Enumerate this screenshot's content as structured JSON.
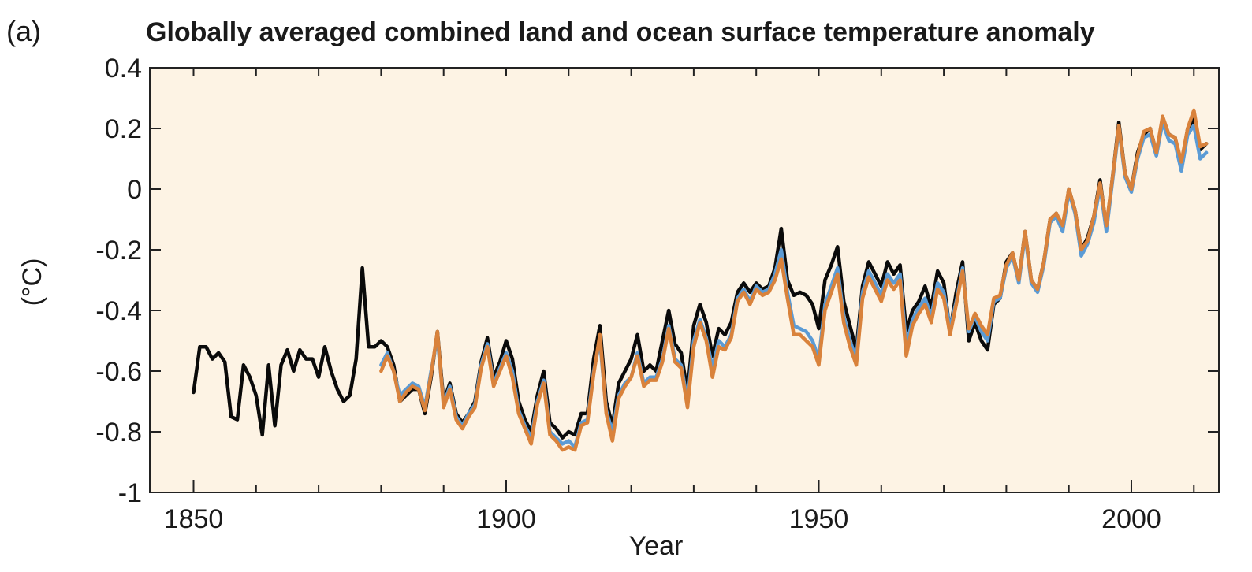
{
  "chart_data": {
    "type": "line",
    "panel_label": "(a)",
    "title": "Globally averaged combined land and ocean surface temperature anomaly",
    "xlabel": "Year",
    "ylabel": "(°C)",
    "xlim": [
      1843,
      2014
    ],
    "ylim": [
      -1,
      0.4
    ],
    "xticks": [
      1850,
      1900,
      1950,
      2000
    ],
    "yticks": [
      0.4,
      0.2,
      0,
      -0.2,
      -0.4,
      -0.6,
      -0.8,
      -1
    ],
    "ytick_labels": [
      "0.4",
      "0.2",
      "0",
      "-0.2",
      "-0.4",
      "-0.6",
      "-0.8",
      "-1"
    ],
    "grid": false,
    "legend": "none",
    "colors": {
      "plot_background": "#fdf3e4",
      "series_black": "#0a0a0a",
      "series_blue": "#5b9bd5",
      "series_orange": "#d9823b"
    },
    "series": [
      {
        "color": "#0a0a0a",
        "x": [
          1850,
          1851,
          1852,
          1853,
          1854,
          1855,
          1856,
          1857,
          1858,
          1859,
          1860,
          1861,
          1862,
          1863,
          1864,
          1865,
          1866,
          1867,
          1868,
          1869,
          1870,
          1871,
          1872,
          1873,
          1874,
          1875,
          1876,
          1877,
          1878,
          1879,
          1880,
          1881,
          1882,
          1883,
          1884,
          1885,
          1886,
          1887,
          1888,
          1889,
          1890,
          1891,
          1892,
          1893,
          1894,
          1895,
          1896,
          1897,
          1898,
          1899,
          1900,
          1901,
          1902,
          1903,
          1904,
          1905,
          1906,
          1907,
          1908,
          1909,
          1910,
          1911,
          1912,
          1913,
          1914,
          1915,
          1916,
          1917,
          1918,
          1919,
          1920,
          1921,
          1922,
          1923,
          1924,
          1925,
          1926,
          1927,
          1928,
          1929,
          1930,
          1931,
          1932,
          1933,
          1934,
          1935,
          1936,
          1937,
          1938,
          1939,
          1940,
          1941,
          1942,
          1943,
          1944,
          1945,
          1946,
          1947,
          1948,
          1949,
          1950,
          1951,
          1952,
          1953,
          1954,
          1955,
          1956,
          1957,
          1958,
          1959,
          1960,
          1961,
          1962,
          1963,
          1964,
          1965,
          1966,
          1967,
          1968,
          1969,
          1970,
          1971,
          1972,
          1973,
          1974,
          1975,
          1976,
          1977,
          1978,
          1979,
          1980,
          1981,
          1982,
          1983,
          1984,
          1985,
          1986,
          1987,
          1988,
          1989,
          1990,
          1991,
          1992,
          1993,
          1994,
          1995,
          1996,
          1997,
          1998,
          1999,
          2000,
          2001,
          2002,
          2003,
          2004,
          2005,
          2006,
          2007,
          2008,
          2009,
          2010,
          2011,
          2012
        ],
        "y": [
          -0.67,
          -0.52,
          -0.52,
          -0.56,
          -0.54,
          -0.57,
          -0.75,
          -0.76,
          -0.58,
          -0.62,
          -0.68,
          -0.81,
          -0.58,
          -0.78,
          -0.58,
          -0.53,
          -0.6,
          -0.53,
          -0.56,
          -0.56,
          -0.62,
          -0.52,
          -0.6,
          -0.66,
          -0.7,
          -0.68,
          -0.56,
          -0.26,
          -0.52,
          -0.52,
          -0.5,
          -0.52,
          -0.58,
          -0.7,
          -0.68,
          -0.66,
          -0.66,
          -0.74,
          -0.62,
          -0.47,
          -0.7,
          -0.64,
          -0.74,
          -0.77,
          -0.74,
          -0.7,
          -0.57,
          -0.49,
          -0.62,
          -0.57,
          -0.5,
          -0.56,
          -0.7,
          -0.76,
          -0.8,
          -0.68,
          -0.6,
          -0.77,
          -0.79,
          -0.82,
          -0.8,
          -0.81,
          -0.74,
          -0.74,
          -0.56,
          -0.45,
          -0.7,
          -0.78,
          -0.64,
          -0.6,
          -0.56,
          -0.48,
          -0.6,
          -0.58,
          -0.6,
          -0.5,
          -0.4,
          -0.51,
          -0.54,
          -0.67,
          -0.45,
          -0.38,
          -0.44,
          -0.55,
          -0.46,
          -0.48,
          -0.44,
          -0.34,
          -0.31,
          -0.34,
          -0.31,
          -0.33,
          -0.32,
          -0.26,
          -0.13,
          -0.3,
          -0.35,
          -0.34,
          -0.35,
          -0.38,
          -0.46,
          -0.3,
          -0.25,
          -0.19,
          -0.37,
          -0.45,
          -0.53,
          -0.32,
          -0.24,
          -0.28,
          -0.32,
          -0.24,
          -0.28,
          -0.25,
          -0.47,
          -0.4,
          -0.37,
          -0.32,
          -0.39,
          -0.27,
          -0.31,
          -0.47,
          -0.34,
          -0.24,
          -0.5,
          -0.44,
          -0.5,
          -0.53,
          -0.38,
          -0.36,
          -0.24,
          -0.21,
          -0.3,
          -0.14,
          -0.3,
          -0.33,
          -0.24,
          -0.1,
          -0.08,
          -0.13,
          0,
          -0.07,
          -0.2,
          -0.16,
          -0.09,
          0.03,
          -0.13,
          0.04,
          0.22,
          0.05,
          0,
          0.12,
          0.18,
          0.2,
          0.12,
          0.23,
          0.18,
          0.17,
          0.07,
          0.2,
          0.23,
          0.13,
          0.15
        ]
      },
      {
        "color": "#5b9bd5",
        "x": [
          1880,
          1881,
          1882,
          1883,
          1884,
          1885,
          1886,
          1887,
          1888,
          1889,
          1890,
          1891,
          1892,
          1893,
          1894,
          1895,
          1896,
          1897,
          1898,
          1899,
          1900,
          1901,
          1902,
          1903,
          1904,
          1905,
          1906,
          1907,
          1908,
          1909,
          1910,
          1911,
          1912,
          1913,
          1914,
          1915,
          1916,
          1917,
          1918,
          1919,
          1920,
          1921,
          1922,
          1923,
          1924,
          1925,
          1926,
          1927,
          1928,
          1929,
          1930,
          1931,
          1932,
          1933,
          1934,
          1935,
          1936,
          1937,
          1938,
          1939,
          1940,
          1941,
          1942,
          1943,
          1944,
          1945,
          1946,
          1947,
          1948,
          1949,
          1950,
          1951,
          1952,
          1953,
          1954,
          1955,
          1956,
          1957,
          1958,
          1959,
          1960,
          1961,
          1962,
          1963,
          1964,
          1965,
          1966,
          1967,
          1968,
          1969,
          1970,
          1971,
          1972,
          1973,
          1974,
          1975,
          1976,
          1977,
          1978,
          1979,
          1980,
          1981,
          1982,
          1983,
          1984,
          1985,
          1986,
          1987,
          1988,
          1989,
          1990,
          1991,
          1992,
          1993,
          1994,
          1995,
          1996,
          1997,
          1998,
          1999,
          2000,
          2001,
          2002,
          2003,
          2004,
          2005,
          2006,
          2007,
          2008,
          2009,
          2010,
          2011,
          2012
        ],
        "y": [
          -0.58,
          -0.54,
          -0.6,
          -0.68,
          -0.66,
          -0.64,
          -0.65,
          -0.72,
          -0.6,
          -0.49,
          -0.71,
          -0.65,
          -0.75,
          -0.78,
          -0.74,
          -0.71,
          -0.58,
          -0.51,
          -0.64,
          -0.59,
          -0.54,
          -0.6,
          -0.73,
          -0.78,
          -0.82,
          -0.7,
          -0.63,
          -0.8,
          -0.82,
          -0.84,
          -0.83,
          -0.85,
          -0.77,
          -0.76,
          -0.6,
          -0.5,
          -0.73,
          -0.8,
          -0.68,
          -0.64,
          -0.62,
          -0.54,
          -0.64,
          -0.62,
          -0.62,
          -0.56,
          -0.45,
          -0.56,
          -0.58,
          -0.7,
          -0.5,
          -0.43,
          -0.49,
          -0.59,
          -0.5,
          -0.52,
          -0.48,
          -0.36,
          -0.33,
          -0.37,
          -0.32,
          -0.34,
          -0.33,
          -0.28,
          -0.2,
          -0.34,
          -0.45,
          -0.46,
          -0.47,
          -0.5,
          -0.56,
          -0.38,
          -0.32,
          -0.26,
          -0.42,
          -0.5,
          -0.56,
          -0.34,
          -0.27,
          -0.31,
          -0.35,
          -0.28,
          -0.31,
          -0.28,
          -0.52,
          -0.43,
          -0.39,
          -0.36,
          -0.42,
          -0.31,
          -0.34,
          -0.46,
          -0.37,
          -0.26,
          -0.47,
          -0.42,
          -0.47,
          -0.5,
          -0.37,
          -0.36,
          -0.26,
          -0.22,
          -0.31,
          -0.15,
          -0.31,
          -0.34,
          -0.25,
          -0.11,
          -0.09,
          -0.14,
          -0.01,
          -0.08,
          -0.22,
          -0.18,
          -0.11,
          0.01,
          -0.14,
          0.03,
          0.2,
          0.04,
          -0.01,
          0.1,
          0.17,
          0.18,
          0.11,
          0.22,
          0.16,
          0.15,
          0.06,
          0.18,
          0.21,
          0.1,
          0.12
        ]
      },
      {
        "color": "#d9823b",
        "x": [
          1880,
          1881,
          1882,
          1883,
          1884,
          1885,
          1886,
          1887,
          1888,
          1889,
          1890,
          1891,
          1892,
          1893,
          1894,
          1895,
          1896,
          1897,
          1898,
          1899,
          1900,
          1901,
          1902,
          1903,
          1904,
          1905,
          1906,
          1907,
          1908,
          1909,
          1910,
          1911,
          1912,
          1913,
          1914,
          1915,
          1916,
          1917,
          1918,
          1919,
          1920,
          1921,
          1922,
          1923,
          1924,
          1925,
          1926,
          1927,
          1928,
          1929,
          1930,
          1931,
          1932,
          1933,
          1934,
          1935,
          1936,
          1937,
          1938,
          1939,
          1940,
          1941,
          1942,
          1943,
          1944,
          1945,
          1946,
          1947,
          1948,
          1949,
          1950,
          1951,
          1952,
          1953,
          1954,
          1955,
          1956,
          1957,
          1958,
          1959,
          1960,
          1961,
          1962,
          1963,
          1964,
          1965,
          1966,
          1967,
          1968,
          1969,
          1970,
          1971,
          1972,
          1973,
          1974,
          1975,
          1976,
          1977,
          1978,
          1979,
          1980,
          1981,
          1982,
          1983,
          1984,
          1985,
          1986,
          1987,
          1988,
          1989,
          1990,
          1991,
          1992,
          1993,
          1994,
          1995,
          1996,
          1997,
          1998,
          1999,
          2000,
          2001,
          2002,
          2003,
          2004,
          2005,
          2006,
          2007,
          2008,
          2009,
          2010,
          2011,
          2012
        ],
        "y": [
          -0.6,
          -0.55,
          -0.6,
          -0.7,
          -0.67,
          -0.65,
          -0.66,
          -0.73,
          -0.61,
          -0.47,
          -0.72,
          -0.66,
          -0.76,
          -0.79,
          -0.75,
          -0.72,
          -0.59,
          -0.52,
          -0.65,
          -0.6,
          -0.55,
          -0.62,
          -0.74,
          -0.79,
          -0.84,
          -0.71,
          -0.64,
          -0.81,
          -0.83,
          -0.86,
          -0.85,
          -0.86,
          -0.78,
          -0.77,
          -0.61,
          -0.48,
          -0.74,
          -0.83,
          -0.69,
          -0.65,
          -0.62,
          -0.55,
          -0.65,
          -0.63,
          -0.63,
          -0.57,
          -0.46,
          -0.57,
          -0.59,
          -0.72,
          -0.52,
          -0.44,
          -0.5,
          -0.62,
          -0.52,
          -0.53,
          -0.49,
          -0.37,
          -0.34,
          -0.38,
          -0.33,
          -0.35,
          -0.34,
          -0.3,
          -0.23,
          -0.36,
          -0.48,
          -0.48,
          -0.5,
          -0.52,
          -0.58,
          -0.4,
          -0.34,
          -0.28,
          -0.44,
          -0.52,
          -0.58,
          -0.36,
          -0.29,
          -0.33,
          -0.37,
          -0.3,
          -0.33,
          -0.3,
          -0.55,
          -0.45,
          -0.41,
          -0.38,
          -0.44,
          -0.33,
          -0.36,
          -0.48,
          -0.38,
          -0.27,
          -0.46,
          -0.41,
          -0.45,
          -0.48,
          -0.36,
          -0.35,
          -0.25,
          -0.21,
          -0.3,
          -0.14,
          -0.3,
          -0.33,
          -0.24,
          -0.1,
          -0.08,
          -0.12,
          0,
          -0.07,
          -0.2,
          -0.17,
          -0.09,
          0.02,
          -0.12,
          0.04,
          0.21,
          0.05,
          0,
          0.11,
          0.19,
          0.2,
          0.12,
          0.24,
          0.18,
          0.17,
          0.09,
          0.2,
          0.26,
          0.14,
          0.15
        ]
      }
    ]
  }
}
